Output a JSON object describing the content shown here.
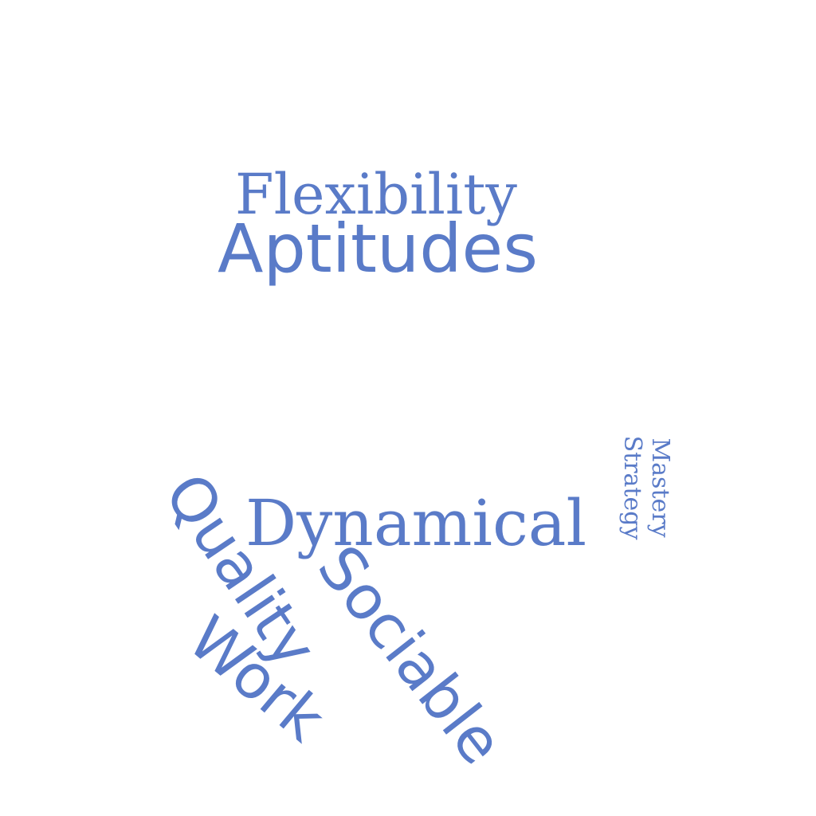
{
  "word_cloud": {
    "color": "#5a7bc8",
    "words": [
      {
        "text": "Flexibility"
      },
      {
        "text": "Aptitudes"
      },
      {
        "text": "Dynamical"
      },
      {
        "text": "Mastery"
      },
      {
        "text": "Strategy"
      },
      {
        "text": "Quality"
      },
      {
        "text": "Sociable"
      },
      {
        "text": "Work"
      }
    ]
  }
}
